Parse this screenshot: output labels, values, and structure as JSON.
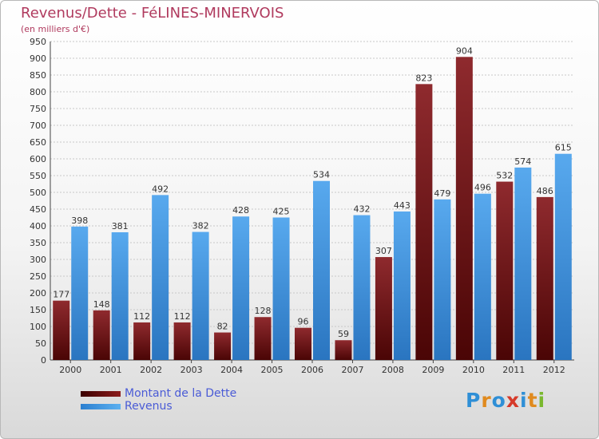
{
  "chart_data": {
    "type": "bar",
    "title": "Revenus/Dette - FéLINES-MINERVOIS",
    "subtitle": "(en milliers d'€)",
    "categories": [
      "2000",
      "2001",
      "2002",
      "2003",
      "2004",
      "2005",
      "2006",
      "2007",
      "2008",
      "2009",
      "2010",
      "2011",
      "2012"
    ],
    "series": [
      {
        "name": "Montant de la Dette",
        "color": "#7a1a1a",
        "values": [
          177,
          148,
          112,
          112,
          82,
          128,
          96,
          59,
          307,
          823,
          904,
          532,
          486
        ]
      },
      {
        "name": "Revenus",
        "color": "#3d8fd8",
        "values": [
          398,
          381,
          492,
          382,
          428,
          425,
          534,
          432,
          443,
          479,
          496,
          574,
          615
        ]
      }
    ],
    "ylim": [
      0,
      950
    ],
    "yticks": [
      0,
      50,
      100,
      150,
      200,
      250,
      300,
      350,
      400,
      450,
      500,
      550,
      600,
      650,
      700,
      750,
      800,
      850,
      900,
      950
    ],
    "grid": true,
    "legend_position": "bottom-left"
  },
  "logo": {
    "letters": [
      "P",
      "r",
      "o",
      "x",
      "i",
      "t",
      "i"
    ],
    "colors": [
      "#2f8fd6",
      "#e08a1e",
      "#2f8fd6",
      "#d63a2a",
      "#2f8fd6",
      "#e08a1e",
      "#7ab82e"
    ]
  }
}
